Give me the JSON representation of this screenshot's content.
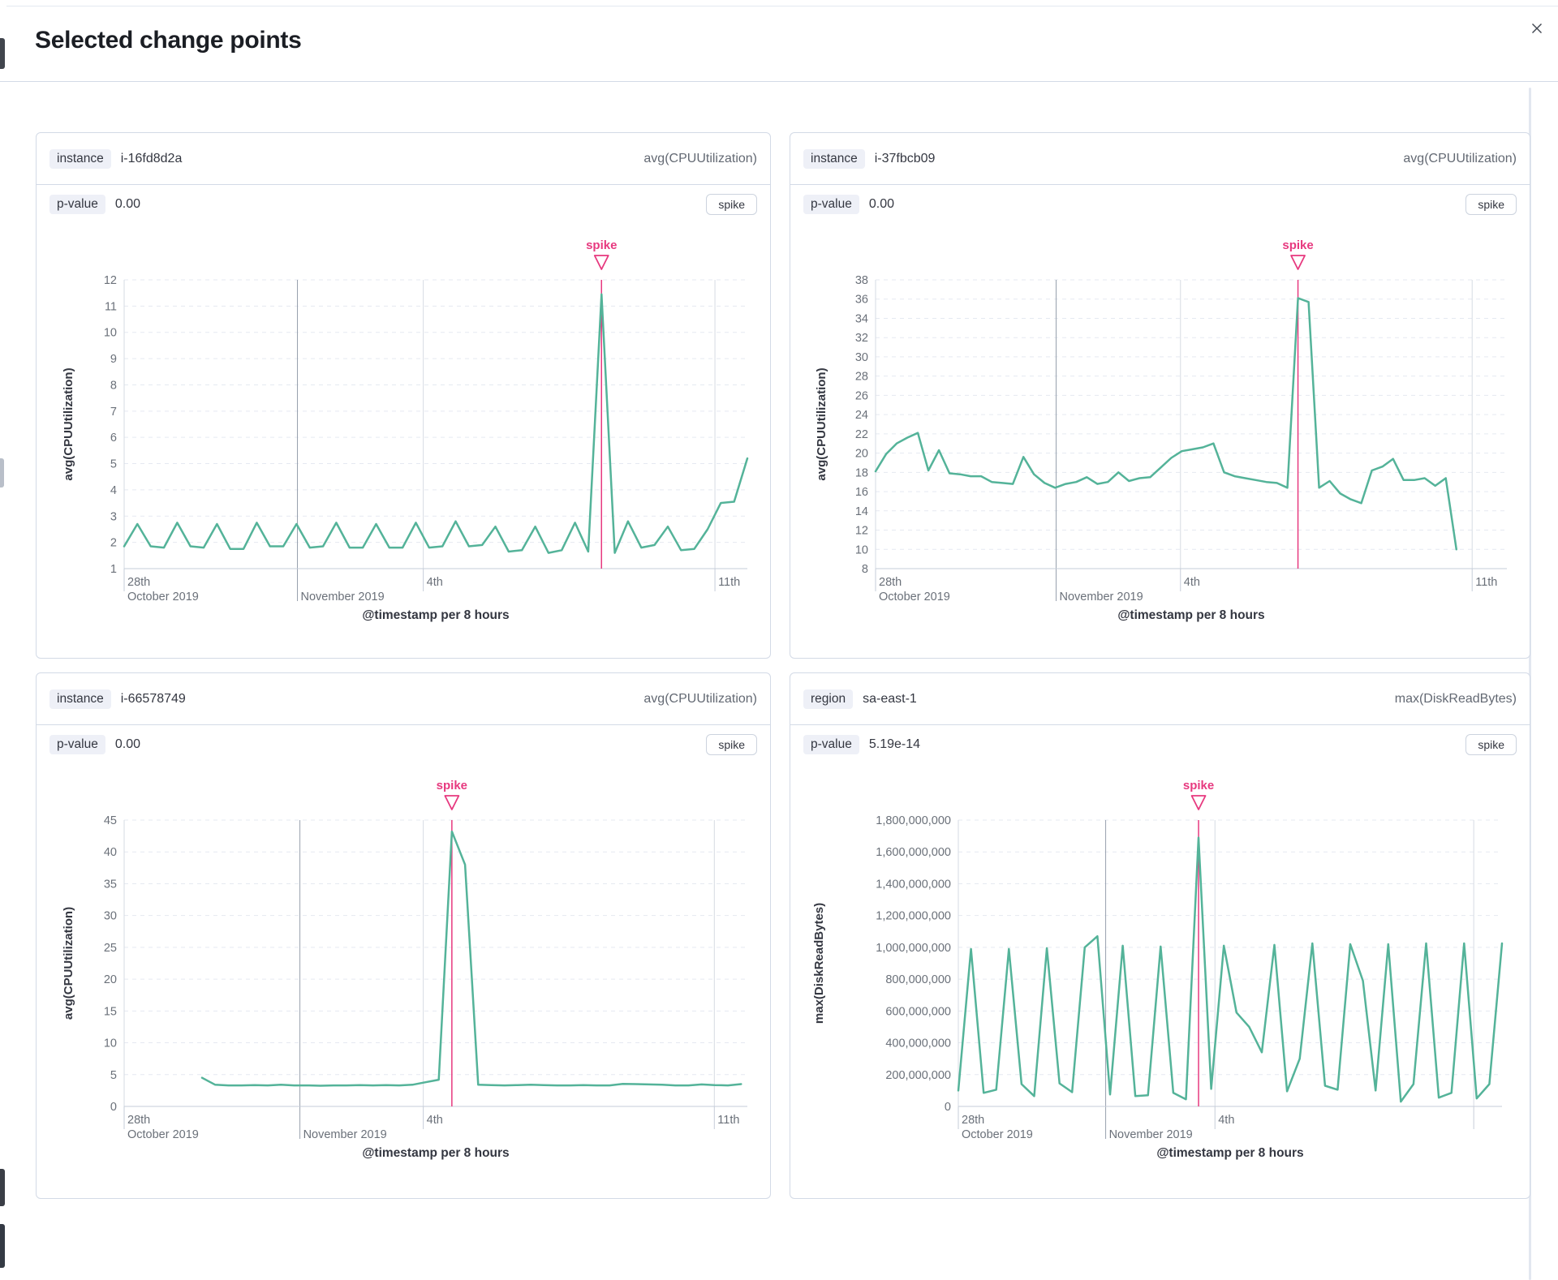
{
  "modal": {
    "title": "Selected change points",
    "close_icon": "x-close"
  },
  "colors": {
    "accent": "#e7397f",
    "series": "#54b399",
    "grid_dashed": "#e5e9f1",
    "grid_month": "#98a1ae",
    "grid_minor": "#d6dbe3",
    "axis_line": "#c6cdd9",
    "tick_text": "#6a7079",
    "axis_title_text": "#343741"
  },
  "panels": [
    {
      "key_label": "instance",
      "key_value": "i-16fd8d2a",
      "measure": "avg(CPUUtilization)",
      "p_label": "p-value",
      "p_value": "0.00",
      "change_type": "spike"
    },
    {
      "key_label": "instance",
      "key_value": "i-37fbcb09",
      "measure": "avg(CPUUtilization)",
      "p_label": "p-value",
      "p_value": "0.00",
      "change_type": "spike"
    },
    {
      "key_label": "instance",
      "key_value": "i-66578749",
      "measure": "avg(CPUUtilization)",
      "p_label": "p-value",
      "p_value": "0.00",
      "change_type": "spike"
    },
    {
      "key_label": "region",
      "key_value": "sa-east-1",
      "measure": "max(DiskReadBytes)",
      "p_label": "p-value",
      "p_value": "5.19e-14",
      "change_type": "spike"
    }
  ],
  "chart_data": [
    {
      "type": "line",
      "name": "i-16fd8d2a",
      "ylabel": "avg(CPUUtilization)",
      "xlabel": "@timestamp per 8 hours",
      "ylim": [
        1,
        12
      ],
      "yticks": [
        {
          "v": 12,
          "label": "12"
        },
        {
          "v": 11,
          "label": "11"
        },
        {
          "v": 10,
          "label": "10"
        },
        {
          "v": 9,
          "label": "9"
        },
        {
          "v": 8,
          "label": "8"
        },
        {
          "v": 7,
          "label": "7"
        },
        {
          "v": 6,
          "label": "6"
        },
        {
          "v": 5,
          "label": "5"
        },
        {
          "v": 4,
          "label": "4"
        },
        {
          "v": 3,
          "label": "3"
        },
        {
          "v": 2,
          "label": "2"
        },
        {
          "v": 1,
          "label": "1"
        }
      ],
      "xticks": [
        {
          "f": 0.0,
          "l1": "28th",
          "l2": "October 2019",
          "edge": true
        },
        {
          "f": 0.278,
          "l1": "",
          "l2": "November 2019",
          "month": true
        },
        {
          "f": 0.48,
          "l1": "4th",
          "l2": ""
        },
        {
          "f": 0.948,
          "l1": "11th",
          "l2": ""
        }
      ],
      "annotation": "spike",
      "spike_index": 36,
      "data_start": 0.0,
      "data_end": 1.0,
      "values": [
        1.85,
        2.7,
        1.85,
        1.8,
        2.75,
        1.85,
        1.8,
        2.7,
        1.75,
        1.75,
        2.75,
        1.85,
        1.85,
        2.7,
        1.8,
        1.85,
        2.75,
        1.8,
        1.8,
        2.7,
        1.8,
        1.8,
        2.75,
        1.8,
        1.85,
        2.8,
        1.85,
        1.9,
        2.6,
        1.65,
        1.7,
        2.6,
        1.6,
        1.7,
        2.75,
        1.65,
        11.45,
        1.6,
        2.8,
        1.8,
        1.9,
        2.6,
        1.7,
        1.75,
        2.5,
        3.5,
        3.55,
        5.2
      ]
    },
    {
      "type": "line",
      "name": "i-37fbcb09",
      "ylabel": "avg(CPUUtilization)",
      "xlabel": "@timestamp per 8 hours",
      "ylim": [
        8,
        38
      ],
      "yticks": [
        {
          "v": 38,
          "label": "38"
        },
        {
          "v": 36,
          "label": "36"
        },
        {
          "v": 34,
          "label": "34"
        },
        {
          "v": 32,
          "label": "32"
        },
        {
          "v": 30,
          "label": "30"
        },
        {
          "v": 28,
          "label": "28"
        },
        {
          "v": 26,
          "label": "26"
        },
        {
          "v": 24,
          "label": "24"
        },
        {
          "v": 22,
          "label": "22"
        },
        {
          "v": 20,
          "label": "20"
        },
        {
          "v": 18,
          "label": "18"
        },
        {
          "v": 16,
          "label": "16"
        },
        {
          "v": 14,
          "label": "14"
        },
        {
          "v": 12,
          "label": "12"
        },
        {
          "v": 10,
          "label": "10"
        },
        {
          "v": 8,
          "label": "8"
        }
      ],
      "xticks": [
        {
          "f": 0.0,
          "l1": "28th",
          "l2": "October 2019",
          "edge": true
        },
        {
          "f": 0.286,
          "l1": "",
          "l2": "November 2019",
          "month": true
        },
        {
          "f": 0.483,
          "l1": "4th",
          "l2": ""
        },
        {
          "f": 0.945,
          "l1": "11th",
          "l2": ""
        }
      ],
      "annotation": "spike",
      "spike_index": 40,
      "data_start": 0.0,
      "data_end": 0.92,
      "values": [
        18.1,
        19.9,
        21.0,
        21.6,
        22.1,
        18.2,
        20.3,
        17.9,
        17.8,
        17.6,
        17.6,
        17.0,
        16.9,
        16.8,
        19.6,
        17.8,
        16.9,
        16.4,
        16.8,
        17.0,
        17.5,
        16.8,
        17.0,
        18.0,
        17.1,
        17.4,
        17.5,
        18.5,
        19.5,
        20.2,
        20.4,
        20.6,
        21.0,
        18.0,
        17.6,
        17.4,
        17.2,
        17.0,
        16.9,
        16.4,
        36.1,
        35.7,
        16.4,
        17.1,
        15.8,
        15.2,
        14.8,
        18.2,
        18.6,
        19.4,
        17.2,
        17.2,
        17.4,
        16.6,
        17.4,
        10.0
      ]
    },
    {
      "type": "line",
      "name": "i-66578749",
      "ylabel": "avg(CPUUtilization)",
      "xlabel": "@timestamp per 8 hours",
      "ylim": [
        0,
        45
      ],
      "yticks": [
        {
          "v": 45,
          "label": "45"
        },
        {
          "v": 40,
          "label": "40"
        },
        {
          "v": 35,
          "label": "35"
        },
        {
          "v": 30,
          "label": "30"
        },
        {
          "v": 25,
          "label": "25"
        },
        {
          "v": 20,
          "label": "20"
        },
        {
          "v": 15,
          "label": "15"
        },
        {
          "v": 10,
          "label": "10"
        },
        {
          "v": 5,
          "label": "5"
        },
        {
          "v": 0,
          "label": "0"
        }
      ],
      "xticks": [
        {
          "f": 0.0,
          "l1": "28th",
          "l2": "October 2019",
          "edge": true
        },
        {
          "f": 0.282,
          "l1": "",
          "l2": "November 2019",
          "month": true
        },
        {
          "f": 0.48,
          "l1": "4th",
          "l2": ""
        },
        {
          "f": 0.947,
          "l1": "11th",
          "l2": ""
        }
      ],
      "annotation": "spike",
      "spike_index": 19,
      "data_start": 0.125,
      "data_end": 0.99,
      "values": [
        4.5,
        3.4,
        3.3,
        3.3,
        3.35,
        3.3,
        3.4,
        3.3,
        3.3,
        3.25,
        3.3,
        3.3,
        3.35,
        3.3,
        3.35,
        3.3,
        3.4,
        3.8,
        4.2,
        43.2,
        38.0,
        3.4,
        3.35,
        3.3,
        3.35,
        3.4,
        3.35,
        3.3,
        3.3,
        3.35,
        3.3,
        3.3,
        3.55,
        3.5,
        3.45,
        3.4,
        3.3,
        3.3,
        3.45,
        3.35,
        3.3,
        3.5
      ]
    },
    {
      "type": "line",
      "name": "sa-east-1",
      "ylabel": "max(DiskReadBytes)",
      "xlabel": "@timestamp per 8 hours",
      "ylim": [
        0,
        1800000000
      ],
      "yticks": [
        {
          "v": 1800000000,
          "label": "1,800,000,000"
        },
        {
          "v": 1600000000,
          "label": "1,600,000,000"
        },
        {
          "v": 1400000000,
          "label": "1,400,000,000"
        },
        {
          "v": 1200000000,
          "label": "1,200,000,000"
        },
        {
          "v": 1000000000,
          "label": "1,000,000,000"
        },
        {
          "v": 800000000,
          "label": "800,000,000"
        },
        {
          "v": 600000000,
          "label": "600,000,000"
        },
        {
          "v": 400000000,
          "label": "400,000,000"
        },
        {
          "v": 200000000,
          "label": "200,000,000"
        },
        {
          "v": 0,
          "label": "0"
        }
      ],
      "xticks": [
        {
          "f": 0.0,
          "l1": "28th",
          "l2": "October 2019",
          "edge": true
        },
        {
          "f": 0.271,
          "l1": "",
          "l2": "November 2019",
          "month": true
        },
        {
          "f": 0.472,
          "l1": "4th",
          "l2": ""
        },
        {
          "f": 0.948,
          "l1": "",
          "l2": ""
        }
      ],
      "annotation": "spike",
      "spike_index": 19,
      "data_start": 0.0,
      "data_end": 1.0,
      "values": [
        100000000,
        990000000,
        85000000,
        105000000,
        990000000,
        140000000,
        65000000,
        995000000,
        145000000,
        90000000,
        1000000000,
        1070000000,
        75000000,
        1010000000,
        65000000,
        70000000,
        1005000000,
        85000000,
        45000000,
        1690000000,
        110000000,
        1010000000,
        590000000,
        500000000,
        340000000,
        1015000000,
        95000000,
        300000000,
        1025000000,
        130000000,
        105000000,
        1020000000,
        790000000,
        100000000,
        1020000000,
        30000000,
        140000000,
        1025000000,
        55000000,
        85000000,
        1025000000,
        50000000,
        140000000,
        1025000000
      ]
    }
  ]
}
